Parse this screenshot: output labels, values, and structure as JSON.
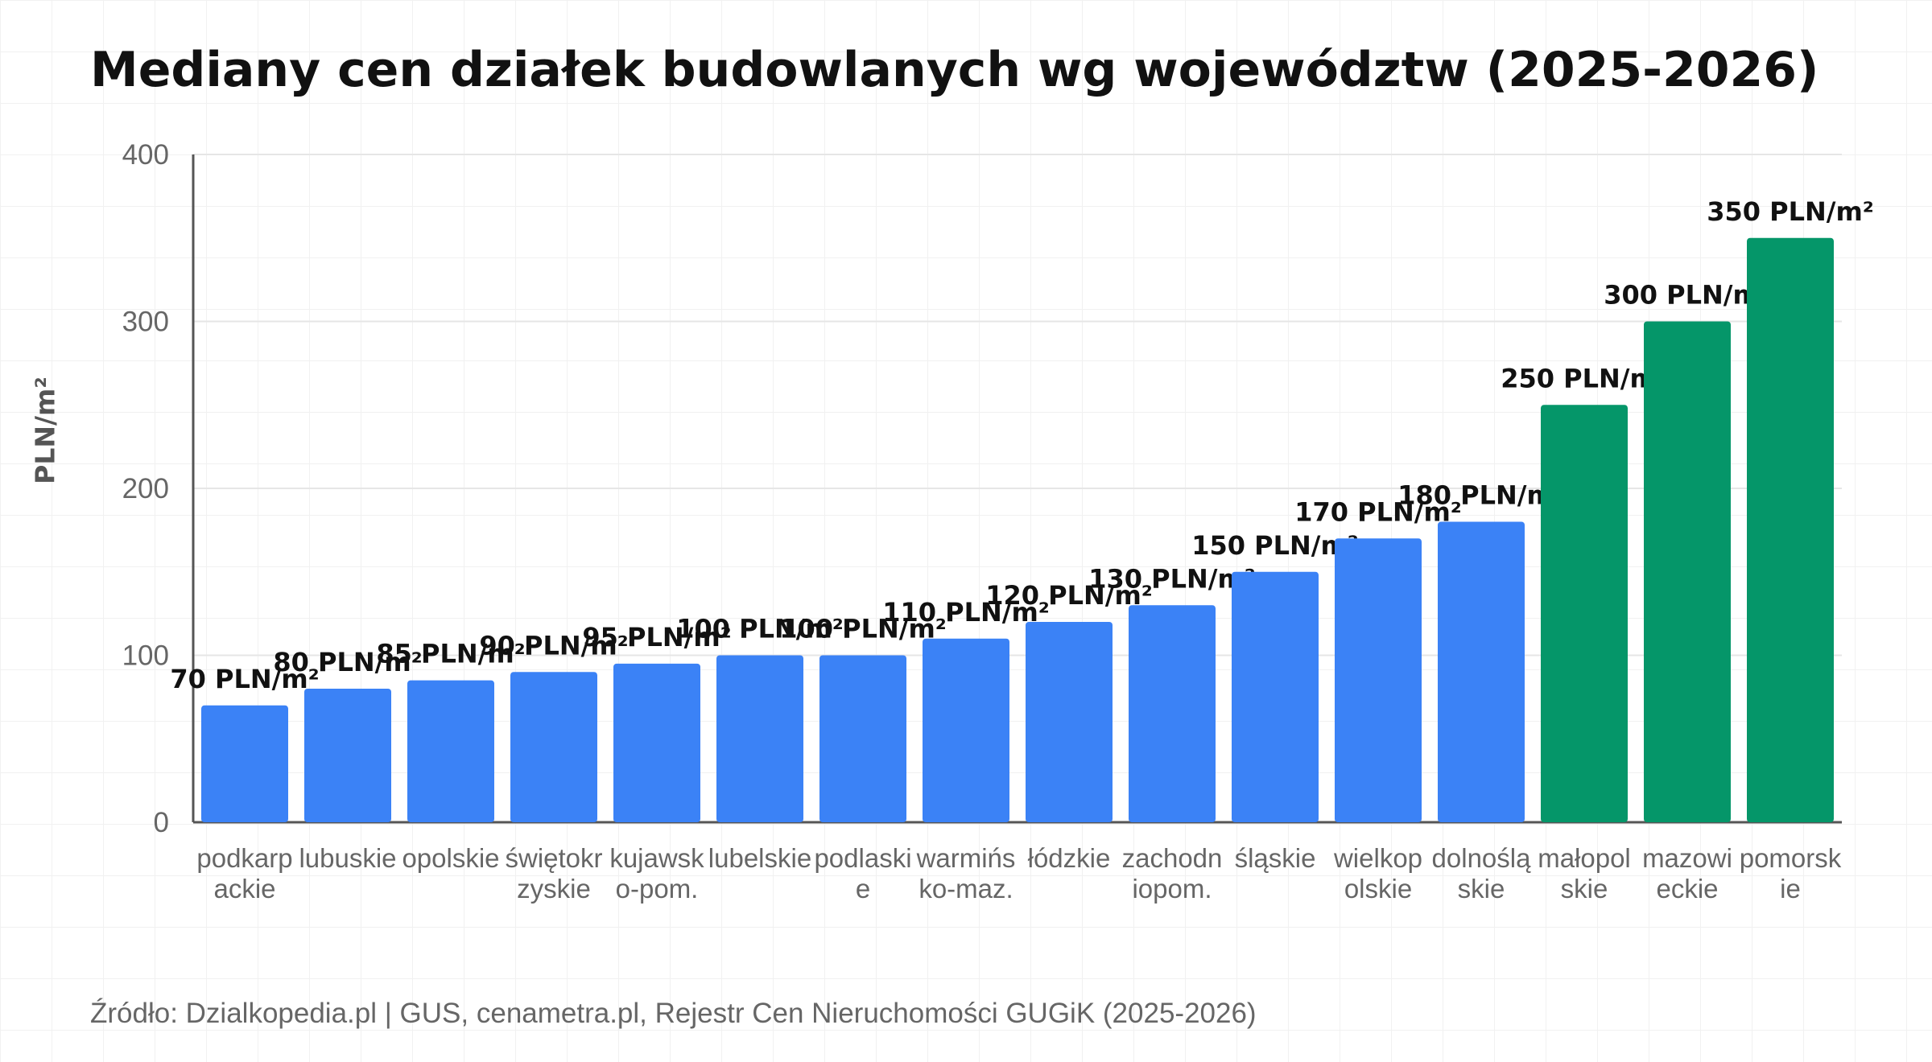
{
  "chart_data": {
    "type": "bar",
    "title": "Mediany cen działek budowlanych wg województw (2025-2026)",
    "ylabel": "PLN/m²",
    "xlabel": "",
    "ylim": [
      0,
      400
    ],
    "yticks": [
      0,
      100,
      200,
      300,
      400
    ],
    "grid": true,
    "categories": [
      [
        "podkarp",
        "ackie"
      ],
      [
        "lubuskie"
      ],
      [
        "opolskie"
      ],
      [
        "świętokr",
        "zyskie"
      ],
      [
        "kujawsk",
        "o-pom."
      ],
      [
        "lubelskie"
      ],
      [
        "podlaski",
        "e"
      ],
      [
        "warmińs",
        "ko-maz."
      ],
      [
        "łódzkie"
      ],
      [
        "zachodn",
        "iopom."
      ],
      [
        "śląskie"
      ],
      [
        "wielkop",
        "olskie"
      ],
      [
        "dolnoślą",
        "skie"
      ],
      [
        "małopol",
        "skie"
      ],
      [
        "mazowi",
        "eckie"
      ],
      [
        "pomorsk",
        "ie"
      ]
    ],
    "values": [
      70,
      80,
      85,
      90,
      95,
      100,
      100,
      110,
      120,
      130,
      150,
      170,
      180,
      250,
      300,
      350
    ],
    "data_labels": [
      "70 PLN/m²",
      "80 PLN/m²",
      "85 PLN/m²",
      "90 PLN/m²",
      "95 PLN/m²",
      "100 PLN/m²",
      "100 PLN/m²",
      "110 PLN/m²",
      "120 PLN/m²",
      "130 PLN/m²",
      "150 PLN/m²",
      "170 PLN/m²",
      "180 PLN/m²",
      "250 PLN/m²",
      "300 PLN/m²",
      "350 PLN/m²"
    ],
    "highlight_from_index": 13,
    "colors": {
      "bar": "#3b82f6",
      "bar_highlight": "#059669",
      "axis": "#555555",
      "grid": "#e6e6e6",
      "tick_text": "#666666",
      "label_text": "#111111"
    }
  },
  "source_text": "Źródło: Dzialkopedia.pl | GUS, cenametra.pl, Rejestr Cen Nieruchomości GUGiK (2025-2026)"
}
